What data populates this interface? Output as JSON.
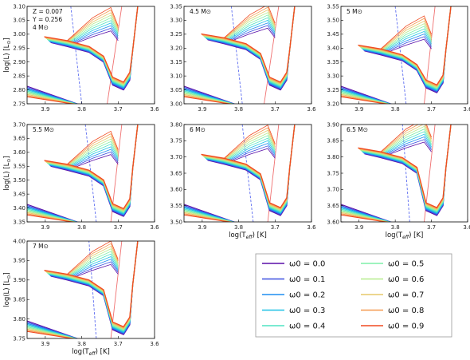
{
  "chart_data": {
    "type": "line",
    "xlabel": "log(T_eff) [K]",
    "ylabel": "log(L) [L_⊙]",
    "legend_title": "",
    "legend": [
      {
        "name": "ω0 = 0.0",
        "color": "#5a0fa8"
      },
      {
        "name": "ω0 = 0.1",
        "color": "#3a4fe0"
      },
      {
        "name": "ω0 = 0.2",
        "color": "#1e8ef0"
      },
      {
        "name": "ω0 = 0.3",
        "color": "#1fc2e6"
      },
      {
        "name": "ω0 = 0.4",
        "color": "#4fe3c3"
      },
      {
        "name": "ω0 = 0.5",
        "color": "#7fefa8"
      },
      {
        "name": "ω0 = 0.6",
        "color": "#b6ec8c"
      },
      {
        "name": "ω0 = 0.7",
        "color": "#e6c86a"
      },
      {
        "name": "ω0 = 0.8",
        "color": "#f59a50"
      },
      {
        "name": "ω0 = 0.9",
        "color": "#f04a20"
      }
    ],
    "panels": [
      {
        "mass": "4 M⊙",
        "extra": [
          "Z = 0.007",
          "Y = 0.256"
        ],
        "ylim": [
          2.75,
          3.1
        ],
        "yticks": [
          "2.75",
          "2.80",
          "2.85",
          "2.90",
          "2.95",
          "3.00",
          "3.05",
          "3.10"
        ],
        "xticks": [
          "3.9",
          "3.8",
          "3.7",
          "3.6"
        ],
        "show_xlabel": false,
        "show_ylabel": true,
        "start_y": 2.97,
        "end_y": 2.8,
        "blue_x": [
          3.8,
          3.83
        ],
        "red_x": [
          3.73,
          3.69
        ]
      },
      {
        "mass": "4.5 M⊙",
        "extra": [],
        "ylim": [
          3.0,
          3.35
        ],
        "yticks": [
          "3.00",
          "3.05",
          "3.10",
          "3.15",
          "3.20",
          "3.25",
          "3.30",
          "3.35"
        ],
        "xticks": [
          "3.9",
          "3.8",
          "3.7",
          "3.6"
        ],
        "show_xlabel": false,
        "show_ylabel": false,
        "start_y": 3.23,
        "end_y": 3.05,
        "blue_x": [
          3.79,
          3.82
        ],
        "red_x": [
          3.73,
          3.69
        ]
      },
      {
        "mass": "5 M⊙",
        "extra": [],
        "ylim": [
          3.2,
          3.55
        ],
        "yticks": [
          "3.20",
          "3.25",
          "3.30",
          "3.35",
          "3.40",
          "3.45",
          "3.50",
          "3.55"
        ],
        "xticks": [
          "3.9",
          "3.8",
          "3.7",
          "3.6"
        ],
        "show_xlabel": false,
        "show_ylabel": false,
        "start_y": 3.39,
        "end_y": 3.24,
        "blue_x": [
          3.77,
          3.8
        ],
        "red_x": [
          3.72,
          3.69
        ]
      },
      {
        "mass": "5.5 M⊙",
        "extra": [],
        "ylim": [
          3.35,
          3.7
        ],
        "yticks": [
          "3.35",
          "3.40",
          "3.45",
          "3.50",
          "3.55",
          "3.60",
          "3.65",
          "3.70"
        ],
        "xticks": [
          "3.9",
          "3.8",
          "3.7",
          "3.6"
        ],
        "show_xlabel": false,
        "show_ylabel": true,
        "start_y": 3.55,
        "end_y": 3.37,
        "blue_x": [
          3.76,
          3.79
        ],
        "red_x": [
          3.72,
          3.69
        ]
      },
      {
        "mass": "6 M⊙",
        "extra": [],
        "ylim": [
          3.5,
          3.8
        ],
        "yticks": [
          "3.50",
          "3.55",
          "3.60",
          "3.65",
          "3.70",
          "3.75",
          "3.80"
        ],
        "xticks": [
          "3.9",
          "3.8",
          "3.7",
          "3.6"
        ],
        "show_xlabel": true,
        "show_ylabel": false,
        "start_y": 3.69,
        "end_y": 3.52,
        "blue_x": [
          3.76,
          3.79
        ],
        "red_x": [
          3.72,
          3.69
        ]
      },
      {
        "mass": "6.5 M⊙",
        "extra": [],
        "ylim": [
          3.6,
          3.9
        ],
        "yticks": [
          "3.60",
          "3.65",
          "3.70",
          "3.75",
          "3.80",
          "3.85",
          "3.90"
        ],
        "xticks": [
          "3.9",
          "3.8",
          "3.7",
          "3.6"
        ],
        "show_xlabel": true,
        "show_ylabel": false,
        "start_y": 3.81,
        "end_y": 3.62,
        "blue_x": [
          3.76,
          3.78
        ],
        "red_x": [
          3.72,
          3.69
        ]
      },
      {
        "mass": "7 M⊙",
        "extra": [],
        "ylim": [
          3.75,
          4.0
        ],
        "yticks": [
          "3.75",
          "3.80",
          "3.85",
          "3.90",
          "3.95",
          "4.00"
        ],
        "xticks": [
          "3.9",
          "3.8",
          "3.7",
          "3.6"
        ],
        "show_xlabel": true,
        "show_ylabel": true,
        "start_y": 3.91,
        "end_y": 3.76,
        "blue_x": [
          3.76,
          3.78
        ],
        "red_x": [
          3.72,
          3.69
        ]
      }
    ]
  }
}
